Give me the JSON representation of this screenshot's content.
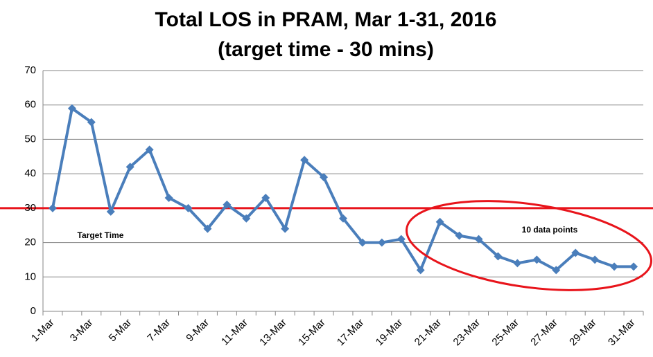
{
  "chart_data": {
    "type": "line",
    "title": "Total LOS in PRAM, Mar 1-31, 2016",
    "subtitle": "(target time - 30 mins)",
    "categories": [
      "1-Mar",
      null,
      "3-Mar",
      null,
      "5-Mar",
      null,
      "7-Mar",
      null,
      "9-Mar",
      null,
      "11-Mar",
      null,
      "13-Mar",
      null,
      "15-Mar",
      null,
      "17-Mar",
      null,
      "19-Mar",
      null,
      "21-Mar",
      null,
      "23-Mar",
      null,
      "25-Mar",
      null,
      "27-Mar",
      null,
      "29-Mar",
      null,
      "31-Mar"
    ],
    "series": [
      {
        "color": "#4a7ebb",
        "values": [
          30,
          59,
          55,
          29,
          42,
          47,
          33,
          30,
          24,
          31,
          27,
          33,
          24,
          44,
          39,
          27,
          20,
          20,
          21,
          12,
          26,
          22,
          21,
          16,
          14,
          15,
          12,
          17,
          15,
          13,
          13
        ]
      }
    ],
    "ylim": [
      0,
      70
    ],
    "yticks": [
      0,
      10,
      20,
      30,
      40,
      50,
      60,
      70
    ],
    "grid": true,
    "target": {
      "value": 30,
      "label": "Target Time",
      "color": "#e8141b"
    },
    "highlight_label": "10 data points"
  }
}
